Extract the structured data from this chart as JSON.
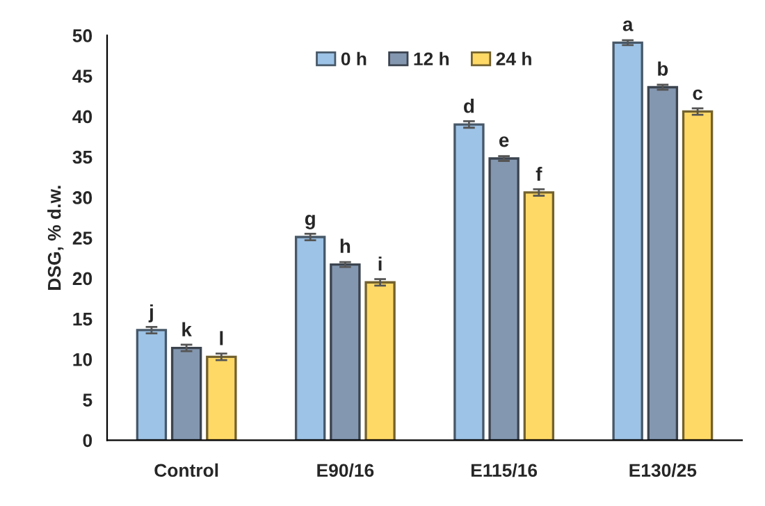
{
  "chart_data": {
    "type": "bar",
    "ylabel": "DSG, % d.w.",
    "categories": [
      "Control",
      "E90/16",
      "E115/16",
      "E130/25"
    ],
    "series": [
      {
        "name": "0 h",
        "color": "#9dc3e6",
        "values": [
          13.6,
          25.1,
          39.0,
          49.1
        ],
        "errors": [
          0.4,
          0.4,
          0.4,
          0.3
        ],
        "value_labels": [
          "j",
          "g",
          "d",
          "a"
        ]
      },
      {
        "name": "12 h",
        "color": "#8497b0",
        "values": [
          11.4,
          21.7,
          34.8,
          43.6
        ],
        "errors": [
          0.4,
          0.3,
          0.3,
          0.3
        ],
        "value_labels": [
          "k",
          "h",
          "e",
          "b"
        ]
      },
      {
        "name": "24 h",
        "color": "#ffd966",
        "values": [
          10.3,
          19.5,
          30.6,
          40.6
        ],
        "errors": [
          0.4,
          0.4,
          0.4,
          0.4
        ],
        "value_labels": [
          "l",
          "i",
          "f",
          "c"
        ]
      }
    ],
    "ylim": [
      0,
      50
    ],
    "yticks": [
      0,
      5,
      10,
      15,
      20,
      25,
      30,
      35,
      40,
      45,
      50
    ],
    "grid": false,
    "legend": "top"
  }
}
